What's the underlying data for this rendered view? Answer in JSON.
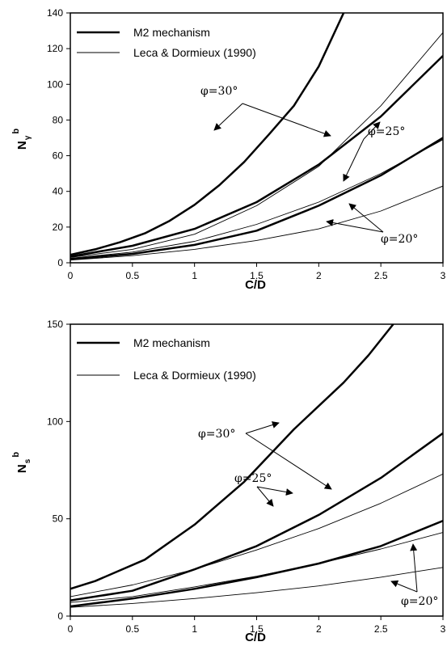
{
  "chart_data": [
    {
      "type": "line",
      "xlabel": "C/D",
      "ylabel": {
        "main": "N",
        "sub": "γ",
        "sup": "b"
      },
      "xlim": [
        0,
        3
      ],
      "ylim": [
        0,
        140
      ],
      "xticks": [
        "0",
        "0.5",
        "1",
        "1.5",
        "2",
        "2.5",
        "3"
      ],
      "yticks": [
        "0",
        "20",
        "40",
        "60",
        "80",
        "100",
        "120",
        "140"
      ],
      "grid": false,
      "legend": {
        "placement": "top-left",
        "entries": [
          {
            "label": "M2 mechanism",
            "style": "thick"
          },
          {
            "label": "Leca & Dormieux (1990)",
            "style": "thin"
          }
        ]
      },
      "series": [
        {
          "style": "thick",
          "group": "φ=30°",
          "x": [
            0,
            0.2,
            0.4,
            0.6,
            0.8,
            1.0,
            1.2,
            1.4,
            1.6,
            1.8,
            2.0,
            2.2
          ],
          "y": [
            4.5,
            7.5,
            11.5,
            16.5,
            23.5,
            32.5,
            43.5,
            56.5,
            72,
            88,
            110,
            140
          ]
        },
        {
          "style": "thick",
          "group": "φ=25°",
          "x": [
            0,
            0.5,
            1.0,
            1.5,
            2.0,
            2.5,
            3.0
          ],
          "y": [
            3.5,
            9.5,
            19,
            34,
            55,
            82,
            116
          ]
        },
        {
          "style": "thick",
          "group": "φ=20°",
          "x": [
            0,
            0.5,
            1.0,
            1.5,
            2.0,
            2.5,
            3.0
          ],
          "y": [
            2,
            5,
            10,
            18,
            32,
            49,
            70
          ]
        },
        {
          "style": "thin",
          "group": "φ=30°",
          "x": [
            0,
            0.5,
            1.0,
            1.5,
            2.0,
            2.5,
            3.0
          ],
          "y": [
            3,
            7.5,
            16,
            32,
            54,
            88,
            129
          ]
        },
        {
          "style": "thin",
          "group": "φ=25°",
          "x": [
            0,
            0.5,
            1.0,
            1.5,
            2.0,
            2.5,
            3.0
          ],
          "y": [
            2.5,
            6,
            12,
            21.5,
            34,
            50,
            69
          ]
        },
        {
          "style": "thin",
          "group": "φ=20°",
          "x": [
            0,
            0.5,
            1.0,
            1.5,
            2.0,
            2.5,
            3.0
          ],
          "y": [
            1.5,
            4,
            7.5,
            12.5,
            19,
            29,
            43
          ]
        }
      ],
      "annotations": [
        "φ=30°",
        "φ=25°",
        "φ=20°"
      ]
    },
    {
      "type": "line",
      "xlabel": "C/D",
      "ylabel": {
        "main": "N",
        "sub": "s",
        "sup": "b"
      },
      "xlim": [
        0,
        3
      ],
      "ylim": [
        0,
        150
      ],
      "xticks": [
        "0",
        "0.5",
        "1",
        "1.5",
        "2",
        "2.5",
        "3"
      ],
      "yticks": [
        "0",
        "50",
        "100",
        "150"
      ],
      "grid": false,
      "legend": {
        "placement": "top-left",
        "entries": [
          {
            "label": "M2 mechanism",
            "style": "thick"
          },
          {
            "label": "Leca & Dormieux (1990)",
            "style": "thin"
          }
        ]
      },
      "series": [
        {
          "style": "thick",
          "group": "φ=30°",
          "x": [
            0,
            0.2,
            0.6,
            1.0,
            1.4,
            1.8,
            2.2,
            2.4,
            2.6
          ],
          "y": [
            14,
            18,
            29,
            47,
            69,
            96,
            120,
            134,
            150
          ]
        },
        {
          "style": "thick",
          "group": "φ=25°",
          "x": [
            0,
            0.5,
            1.0,
            1.5,
            2.0,
            2.5,
            3.0
          ],
          "y": [
            8,
            13,
            24,
            36,
            52,
            71,
            94
          ]
        },
        {
          "style": "thick",
          "group": "φ=20°",
          "x": [
            0,
            0.5,
            1.0,
            1.5,
            2.0,
            2.5,
            3.0
          ],
          "y": [
            5,
            9,
            14,
            20,
            27,
            36,
            49
          ]
        },
        {
          "style": "thin",
          "group": "φ=30°",
          "x": [
            0,
            0.5,
            1.0,
            1.5,
            2.0,
            2.5,
            3.0
          ],
          "y": [
            10,
            16,
            24,
            34,
            45,
            58,
            73
          ]
        },
        {
          "style": "thin",
          "group": "φ=25°",
          "x": [
            0,
            0.5,
            1.0,
            1.5,
            2.0,
            2.5,
            3.0
          ],
          "y": [
            7,
            10,
            15,
            20.5,
            27,
            34.5,
            43
          ]
        },
        {
          "style": "thin",
          "group": "φ=20°",
          "x": [
            0,
            0.5,
            1.0,
            1.5,
            2.0,
            2.5,
            3.0
          ],
          "y": [
            4.5,
            6.5,
            9,
            12,
            15.5,
            20,
            25
          ]
        }
      ],
      "annotations": [
        "φ=30°",
        "φ=25°",
        "φ=20°"
      ]
    }
  ]
}
